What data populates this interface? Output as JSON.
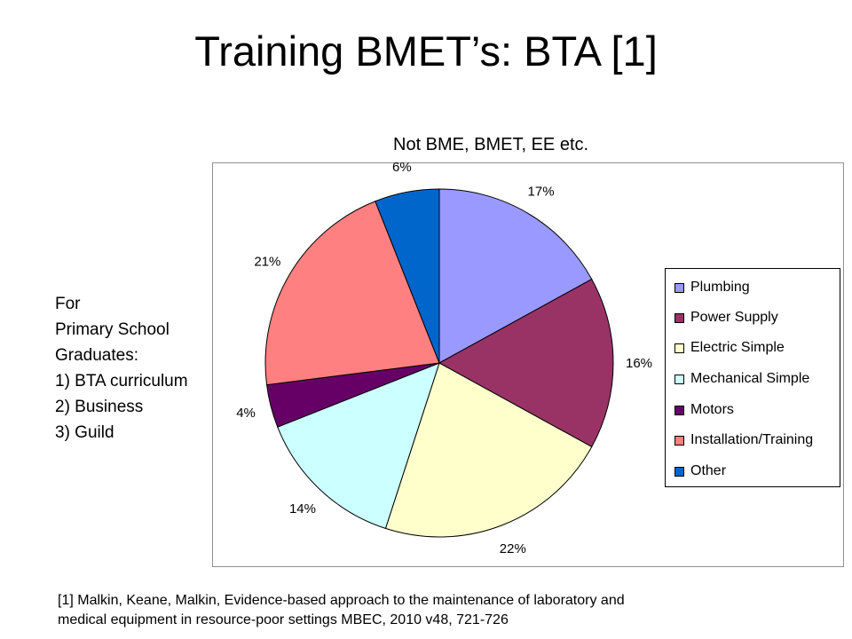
{
  "slide": {
    "title": "Training BMET’s: BTA [1]",
    "side_note": [
      "For",
      "Primary School",
      "Graduates:",
      "1) BTA curriculum",
      "2) Business",
      "3) Guild"
    ],
    "footnote": [
      "[1] Malkin, Keane, Malkin, Evidence-based approach to the maintenance of laboratory and",
      "medical equipment in resource-poor settings MBEC, 2010 v48, 721-726"
    ]
  },
  "chart_data": {
    "type": "pie",
    "title": "Not BME, BMET, EE etc.",
    "legend_position": "right",
    "slices": [
      {
        "label": "Plumbing",
        "value": 17,
        "display": "17%",
        "color": "#9999FF"
      },
      {
        "label": "Power Supply",
        "value": 16,
        "display": "16%",
        "color": "#993366"
      },
      {
        "label": "Electric Simple",
        "value": 22,
        "display": "22%",
        "color": "#FFFFCC"
      },
      {
        "label": "Mechanical Simple",
        "value": 14,
        "display": "14%",
        "color": "#CCFFFF"
      },
      {
        "label": "Motors",
        "value": 4,
        "display": "4%",
        "color": "#660066"
      },
      {
        "label": "Installation/Training",
        "value": 21,
        "display": "21%",
        "color": "#FF8080"
      },
      {
        "label": "Other",
        "value": 6,
        "display": "6%",
        "color": "#0066CC"
      }
    ]
  }
}
